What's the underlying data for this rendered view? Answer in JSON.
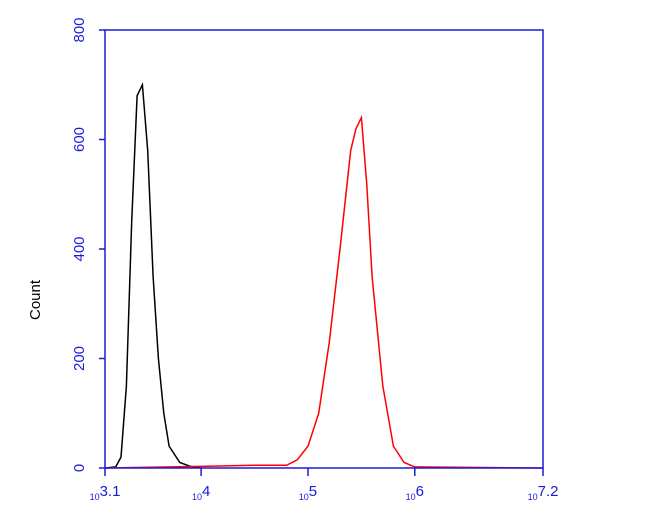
{
  "chart_data": {
    "type": "line",
    "y_label": "Count",
    "x_scale": "log",
    "tick_base": "10",
    "axis_color": "#1a1adb",
    "xlim": [
      1258.9,
      15848932
    ],
    "xticks": [
      {
        "value": 1258.9,
        "label": "3.1"
      },
      {
        "value": 10000,
        "label": "4"
      },
      {
        "value": 100000,
        "label": "5"
      },
      {
        "value": 1000000,
        "label": "6"
      },
      {
        "value": 15848932,
        "label": "7.2"
      }
    ],
    "ylim": [
      0,
      800
    ],
    "yticks": [
      0,
      200,
      400,
      600,
      800
    ],
    "series": [
      {
        "color": "#000000",
        "x": [
          1258.9,
          1585,
          1778,
          1995,
          2239,
          2512,
          2818,
          3162,
          3548,
          3981,
          4467,
          5012,
          6310,
          7943,
          10000
        ],
        "values": [
          0,
          2,
          20,
          150,
          450,
          680,
          700,
          580,
          350,
          200,
          100,
          40,
          10,
          3,
          0
        ]
      },
      {
        "color": "#ff0000",
        "x": [
          1258.9,
          10000,
          31623,
          63096,
          79433,
          100000,
          125893,
          158489,
          199526,
          251189,
          281838,
          316228,
          354813,
          398107,
          501187,
          630957,
          794328,
          1000000,
          15848932
        ],
        "values": [
          0,
          3,
          5,
          5,
          15,
          40,
          100,
          230,
          400,
          580,
          620,
          640,
          520,
          350,
          150,
          40,
          10,
          2,
          0
        ]
      }
    ]
  }
}
